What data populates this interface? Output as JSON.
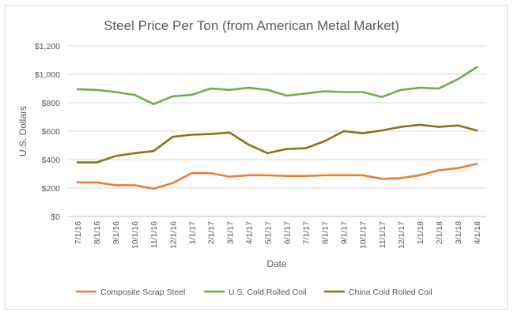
{
  "chart_data": {
    "type": "line",
    "title": "Steel Price Per Ton (from American Metal Market)",
    "xlabel": "Date",
    "ylabel": "U.S. Dollars",
    "ylim": [
      0,
      1200
    ],
    "yticks": [
      "$0",
      "$200",
      "$400",
      "$600",
      "$800",
      "$1,000",
      "$1,200"
    ],
    "ytick_values": [
      0,
      200,
      400,
      600,
      800,
      1000,
      1200
    ],
    "grid": true,
    "legend_position": "bottom",
    "x": [
      "7/1/16",
      "8/1/16",
      "9/1/16",
      "10/1/16",
      "11/1/16",
      "12/1/16",
      "1/1/17",
      "2/1/17",
      "3/1/17",
      "4/1/17",
      "5/1/17",
      "6/1/17",
      "7/1/17",
      "8/1/17",
      "9/1/17",
      "10/1/17",
      "11/1/17",
      "12/1/17",
      "1/1/18",
      "2/1/18",
      "3/1/18",
      "4/1/18"
    ],
    "series": [
      {
        "name": "Composite Scrap Steel",
        "color": "#ED7D31",
        "values": [
          240,
          240,
          220,
          220,
          195,
          235,
          305,
          305,
          280,
          290,
          290,
          285,
          285,
          290,
          290,
          290,
          265,
          270,
          290,
          325,
          340,
          370
        ]
      },
      {
        "name": "U.S. Cold Rolled Coil",
        "color": "#70AD47",
        "values": [
          895,
          890,
          875,
          855,
          790,
          845,
          855,
          900,
          890,
          905,
          890,
          850,
          865,
          880,
          875,
          875,
          840,
          890,
          905,
          900,
          965,
          1050
        ]
      },
      {
        "name": "China Cold Rolled Coil",
        "color": "#8B7411",
        "values": [
          380,
          380,
          425,
          445,
          460,
          560,
          575,
          580,
          590,
          505,
          445,
          475,
          480,
          530,
          600,
          585,
          605,
          630,
          645,
          630,
          640,
          605
        ]
      }
    ]
  }
}
